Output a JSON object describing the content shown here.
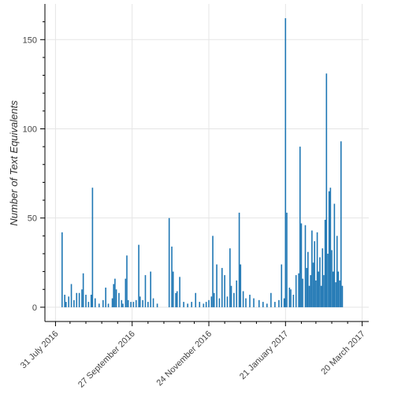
{
  "chart_data": {
    "type": "bar",
    "title": "",
    "xlabel": "",
    "ylabel": "Number of Text Equivalents",
    "x_axis_type": "date",
    "x_range": [
      "2016-07-23",
      "2017-03-25"
    ],
    "ylim": [
      -8,
      170
    ],
    "grid": true,
    "color": "#1f77b4",
    "y_ticks": [
      0,
      50,
      100,
      150
    ],
    "x_ticks": [
      {
        "date": "2016-07-31",
        "label": "31 July 2016"
      },
      {
        "date": "2016-09-27",
        "label": "27 September 2016"
      },
      {
        "date": "2016-11-24",
        "label": "24 November 2016"
      },
      {
        "date": "2017-01-21",
        "label": "21 January 2017"
      },
      {
        "date": "2017-03-20",
        "label": "20 March 2017"
      }
    ],
    "x_minor_tick_dates": [
      "2016-08-11",
      "2016-08-23",
      "2016-09-04",
      "2016-09-16",
      "2016-10-09",
      "2016-10-21",
      "2016-11-02",
      "2016-11-13",
      "2016-12-06",
      "2016-12-18",
      "2016-12-30",
      "2017-01-10",
      "2017-02-02",
      "2017-02-13",
      "2017-02-25",
      "2017-03-09"
    ],
    "y_minor_ticks": [
      10,
      20,
      30,
      40,
      60,
      70,
      80,
      90,
      110,
      120,
      130,
      140,
      160
    ],
    "points": [
      {
        "x": "2016-08-05",
        "y": 42
      },
      {
        "x": "2016-08-07",
        "y": 7
      },
      {
        "x": "2016-08-08",
        "y": 3
      },
      {
        "x": "2016-08-10",
        "y": 6
      },
      {
        "x": "2016-08-12",
        "y": 13
      },
      {
        "x": "2016-08-14",
        "y": 4
      },
      {
        "x": "2016-08-16",
        "y": 8
      },
      {
        "x": "2016-08-18",
        "y": 8
      },
      {
        "x": "2016-08-20",
        "y": 10
      },
      {
        "x": "2016-08-21",
        "y": 19
      },
      {
        "x": "2016-08-23",
        "y": 7
      },
      {
        "x": "2016-08-25",
        "y": 3
      },
      {
        "x": "2016-08-27",
        "y": 7
      },
      {
        "x": "2016-08-28",
        "y": 67
      },
      {
        "x": "2016-08-30",
        "y": 5
      },
      {
        "x": "2016-09-02",
        "y": 2
      },
      {
        "x": "2016-09-05",
        "y": 4
      },
      {
        "x": "2016-09-07",
        "y": 11
      },
      {
        "x": "2016-09-09",
        "y": 2
      },
      {
        "x": "2016-09-12",
        "y": 5
      },
      {
        "x": "2016-09-13",
        "y": 13
      },
      {
        "x": "2016-09-14",
        "y": 16
      },
      {
        "x": "2016-09-15",
        "y": 10
      },
      {
        "x": "2016-09-17",
        "y": 8
      },
      {
        "x": "2016-09-19",
        "y": 4
      },
      {
        "x": "2016-09-20",
        "y": 2
      },
      {
        "x": "2016-09-22",
        "y": 16
      },
      {
        "x": "2016-09-23",
        "y": 29
      },
      {
        "x": "2016-09-24",
        "y": 4
      },
      {
        "x": "2016-09-26",
        "y": 3
      },
      {
        "x": "2016-09-28",
        "y": 3
      },
      {
        "x": "2016-09-30",
        "y": 4
      },
      {
        "x": "2016-10-02",
        "y": 35
      },
      {
        "x": "2016-10-03",
        "y": 6
      },
      {
        "x": "2016-10-05",
        "y": 4
      },
      {
        "x": "2016-10-07",
        "y": 18
      },
      {
        "x": "2016-10-09",
        "y": 3
      },
      {
        "x": "2016-10-11",
        "y": 20
      },
      {
        "x": "2016-10-13",
        "y": 5
      },
      {
        "x": "2016-10-16",
        "y": 2
      },
      {
        "x": "2016-10-25",
        "y": 50
      },
      {
        "x": "2016-10-27",
        "y": 34
      },
      {
        "x": "2016-10-28",
        "y": 20
      },
      {
        "x": "2016-10-30",
        "y": 8
      },
      {
        "x": "2016-10-31",
        "y": 9
      },
      {
        "x": "2016-11-02",
        "y": 17
      },
      {
        "x": "2016-11-05",
        "y": 3
      },
      {
        "x": "2016-11-08",
        "y": 2
      },
      {
        "x": "2016-11-11",
        "y": 3
      },
      {
        "x": "2016-11-14",
        "y": 8
      },
      {
        "x": "2016-11-17",
        "y": 3
      },
      {
        "x": "2016-11-20",
        "y": 2
      },
      {
        "x": "2016-11-22",
        "y": 3
      },
      {
        "x": "2016-11-24",
        "y": 4
      },
      {
        "x": "2016-11-26",
        "y": 6
      },
      {
        "x": "2016-11-27",
        "y": 40
      },
      {
        "x": "2016-11-28",
        "y": 8
      },
      {
        "x": "2016-11-30",
        "y": 24
      },
      {
        "x": "2016-12-02",
        "y": 5
      },
      {
        "x": "2016-12-04",
        "y": 22
      },
      {
        "x": "2016-12-06",
        "y": 18
      },
      {
        "x": "2016-12-08",
        "y": 6
      },
      {
        "x": "2016-12-10",
        "y": 33
      },
      {
        "x": "2016-12-11",
        "y": 12
      },
      {
        "x": "2016-12-13",
        "y": 8
      },
      {
        "x": "2016-12-15",
        "y": 15
      },
      {
        "x": "2016-12-17",
        "y": 53
      },
      {
        "x": "2016-12-18",
        "y": 24
      },
      {
        "x": "2016-12-20",
        "y": 9
      },
      {
        "x": "2016-12-22",
        "y": 5
      },
      {
        "x": "2016-12-25",
        "y": 7
      },
      {
        "x": "2016-12-28",
        "y": 5
      },
      {
        "x": "2017-01-01",
        "y": 4
      },
      {
        "x": "2017-01-04",
        "y": 3
      },
      {
        "x": "2017-01-07",
        "y": 2
      },
      {
        "x": "2017-01-10",
        "y": 8
      },
      {
        "x": "2017-01-13",
        "y": 3
      },
      {
        "x": "2017-01-16",
        "y": 4
      },
      {
        "x": "2017-01-18",
        "y": 24
      },
      {
        "x": "2017-01-20",
        "y": 5
      },
      {
        "x": "2017-01-21",
        "y": 162
      },
      {
        "x": "2017-01-22",
        "y": 53
      },
      {
        "x": "2017-01-24",
        "y": 11
      },
      {
        "x": "2017-01-25",
        "y": 10
      },
      {
        "x": "2017-01-27",
        "y": 7
      },
      {
        "x": "2017-01-29",
        "y": 18
      },
      {
        "x": "2017-01-31",
        "y": 19
      },
      {
        "x": "2017-02-01",
        "y": 90
      },
      {
        "x": "2017-02-02",
        "y": 47
      },
      {
        "x": "2017-02-03",
        "y": 16
      },
      {
        "x": "2017-02-05",
        "y": 46
      },
      {
        "x": "2017-02-06",
        "y": 22
      },
      {
        "x": "2017-02-07",
        "y": 31
      },
      {
        "x": "2017-02-08",
        "y": 12
      },
      {
        "x": "2017-02-09",
        "y": 18
      },
      {
        "x": "2017-02-10",
        "y": 43
      },
      {
        "x": "2017-02-11",
        "y": 25
      },
      {
        "x": "2017-02-12",
        "y": 37
      },
      {
        "x": "2017-02-13",
        "y": 15
      },
      {
        "x": "2017-02-14",
        "y": 42
      },
      {
        "x": "2017-02-15",
        "y": 20
      },
      {
        "x": "2017-02-16",
        "y": 28
      },
      {
        "x": "2017-02-17",
        "y": 12
      },
      {
        "x": "2017-02-18",
        "y": 33
      },
      {
        "x": "2017-02-19",
        "y": 18
      },
      {
        "x": "2017-02-20",
        "y": 49
      },
      {
        "x": "2017-02-21",
        "y": 131
      },
      {
        "x": "2017-02-22",
        "y": 30
      },
      {
        "x": "2017-02-23",
        "y": 65
      },
      {
        "x": "2017-02-24",
        "y": 67
      },
      {
        "x": "2017-02-25",
        "y": 32
      },
      {
        "x": "2017-02-26",
        "y": 20
      },
      {
        "x": "2017-02-27",
        "y": 58
      },
      {
        "x": "2017-02-28",
        "y": 14
      },
      {
        "x": "2017-03-01",
        "y": 40
      },
      {
        "x": "2017-03-02",
        "y": 20
      },
      {
        "x": "2017-03-03",
        "y": 15
      },
      {
        "x": "2017-03-04",
        "y": 93
      },
      {
        "x": "2017-03-05",
        "y": 12
      }
    ]
  }
}
